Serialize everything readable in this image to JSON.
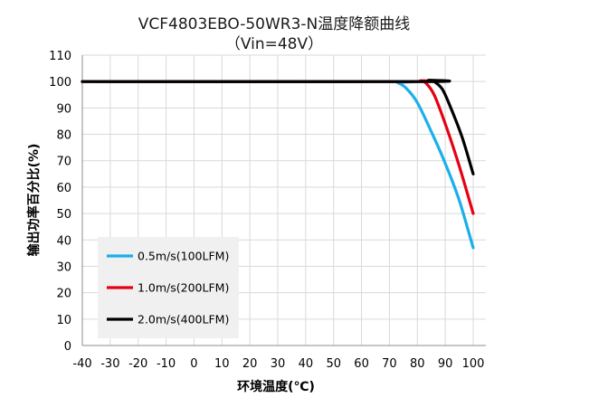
{
  "chart_data": {
    "type": "line",
    "title": "VCF4803EBO-50WR3-N温度降额曲线",
    "subtitle": "（Vin=48V）",
    "xlabel": "环境温度(℃)",
    "ylabel": "输出功率百分比(%)",
    "xlim": [
      -40,
      100
    ],
    "ylim": [
      0,
      110
    ],
    "xticks": [
      -40,
      -30,
      -20,
      -10,
      0,
      10,
      20,
      30,
      40,
      50,
      60,
      70,
      80,
      90,
      100
    ],
    "yticks": [
      0,
      10,
      20,
      30,
      40,
      50,
      60,
      70,
      80,
      90,
      100,
      110
    ],
    "grid": true,
    "legend_position": "bottom-left",
    "series": [
      {
        "name": "0.5m/s(100LFM)",
        "color": "#1ab0ea",
        "points": [
          [
            -40,
            100
          ],
          [
            70,
            100
          ],
          [
            73,
            99.5
          ],
          [
            76,
            97.5
          ],
          [
            80,
            92
          ],
          [
            85,
            81
          ],
          [
            90,
            69
          ],
          [
            95,
            55
          ],
          [
            100,
            37
          ]
        ]
      },
      {
        "name": "1.0m/s(200LFM)",
        "color": "#e60012",
        "points": [
          [
            -40,
            100
          ],
          [
            78,
            100
          ],
          [
            81,
            100.3
          ],
          [
            83,
            99.5
          ],
          [
            86,
            95
          ],
          [
            90,
            84
          ],
          [
            95,
            68
          ],
          [
            100,
            50
          ]
        ]
      },
      {
        "name": "2.0m/s(400LFM)",
        "color": "#000000",
        "points": [
          [
            -40,
            100
          ],
          [
            82,
            100
          ],
          [
            84,
            100.5
          ],
          [
            86,
            100
          ],
          [
            89,
            97
          ],
          [
            92,
            90
          ],
          [
            96,
            79
          ],
          [
            100,
            65
          ]
        ]
      }
    ]
  }
}
